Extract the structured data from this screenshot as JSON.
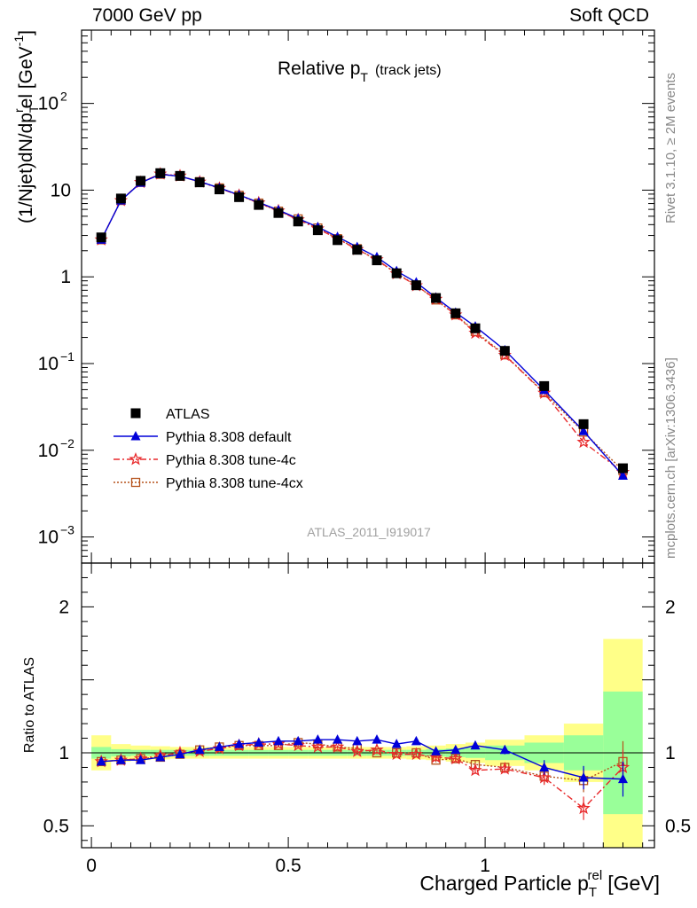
{
  "header": {
    "left": "7000 GeV pp",
    "right": "Soft QCD"
  },
  "side_labels": {
    "rivet": "Rivet 3.1.10, ≥ 2M events",
    "mcplots": "mcplots.cern.ch [arXiv:1306.3436]"
  },
  "chart_data": {
    "type": "line",
    "title_main": "Relative p",
    "title_sub": "T",
    "title_suffix": "(track jets)",
    "watermark": "ATLAS_2011_I919017",
    "xlabel": "Charged Particle p",
    "xlabel_sub": "T",
    "xlabel_sup": "rel",
    "xlabel_unit": "[GeV]",
    "ylabel": "(1/Njet)dN/dp",
    "ylabel_unit": "el [GeV",
    "ylabel_unit_sup": "-1",
    "ylabel_close": "]",
    "ratio_ylabel": "Ratio to ATLAS",
    "xlim": [
      -0.025,
      1.43
    ],
    "ylim_main": [
      0.0005,
      700
    ],
    "ylim_ratio": [
      0.35,
      2.3
    ],
    "yscale_main": "log",
    "x_ticks": [
      {
        "v": 0,
        "label": "0"
      },
      {
        "v": 0.5,
        "label": "0.5"
      },
      {
        "v": 1,
        "label": "1"
      }
    ],
    "main_y_ticks": [
      {
        "v": 0.001,
        "base": "10",
        "exp": "−3"
      },
      {
        "v": 0.01,
        "base": "10",
        "exp": "−2"
      },
      {
        "v": 0.1,
        "base": "10",
        "exp": "−1"
      },
      {
        "v": 1,
        "base": "1",
        "exp": ""
      },
      {
        "v": 10,
        "base": "10",
        "exp": ""
      },
      {
        "v": 100,
        "base": "10",
        "exp": "2"
      }
    ],
    "ratio_y_ticks": [
      {
        "v": 0.5,
        "label": "0.5"
      },
      {
        "v": 1,
        "label": "1"
      },
      {
        "v": 2,
        "label": "2"
      }
    ],
    "x": [
      0.025,
      0.075,
      0.125,
      0.175,
      0.225,
      0.275,
      0.325,
      0.375,
      0.425,
      0.475,
      0.525,
      0.575,
      0.625,
      0.675,
      0.725,
      0.775,
      0.825,
      0.875,
      0.925,
      0.975,
      1.05,
      1.15,
      1.25,
      1.35
    ],
    "bin_edges": [
      0,
      0.05,
      0.1,
      0.15,
      0.2,
      0.25,
      0.3,
      0.35,
      0.4,
      0.45,
      0.5,
      0.55,
      0.6,
      0.65,
      0.7,
      0.75,
      0.8,
      0.85,
      0.9,
      0.95,
      1.0,
      1.1,
      1.2,
      1.3,
      1.4
    ],
    "data": {
      "name": "ATLAS",
      "values": [
        2.85,
        8.0,
        12.8,
        15.7,
        14.6,
        12.3,
        10.2,
        8.3,
        6.75,
        5.45,
        4.35,
        3.45,
        2.65,
        2.05,
        1.55,
        1.1,
        0.8,
        0.57,
        0.38,
        0.255,
        0.14,
        0.055,
        0.02,
        0.0062
      ],
      "band_stat": [
        0.04,
        0.025,
        0.02,
        0.02,
        0.02,
        0.02,
        0.02,
        0.02,
        0.02,
        0.02,
        0.02,
        0.02,
        0.02,
        0.02,
        0.02,
        0.02,
        0.02,
        0.025,
        0.03,
        0.035,
        0.05,
        0.07,
        0.12,
        0.42
      ],
      "band_tot": [
        0.12,
        0.06,
        0.05,
        0.045,
        0.04,
        0.04,
        0.04,
        0.04,
        0.04,
        0.04,
        0.04,
        0.04,
        0.04,
        0.04,
        0.04,
        0.04,
        0.045,
        0.05,
        0.06,
        0.07,
        0.09,
        0.12,
        0.2,
        0.78
      ]
    },
    "series": [
      {
        "name": "Pythia 8.308 default",
        "color": "#0000d9",
        "marker": "triangle",
        "dash": "",
        "ratio": [
          0.94,
          0.95,
          0.95,
          0.97,
          0.99,
          1.02,
          1.04,
          1.06,
          1.07,
          1.08,
          1.08,
          1.09,
          1.09,
          1.08,
          1.09,
          1.06,
          1.08,
          1.01,
          1.02,
          1.05,
          1.02,
          0.9,
          0.83,
          0.82
        ],
        "ratio_err": [
          0.01,
          0.01,
          0.01,
          0.01,
          0.01,
          0.01,
          0.01,
          0.01,
          0.01,
          0.01,
          0.01,
          0.01,
          0.01,
          0.01,
          0.01,
          0.01,
          0.01,
          0.015,
          0.02,
          0.025,
          0.03,
          0.05,
          0.08,
          0.12
        ]
      },
      {
        "name": "Pythia 8.308 tune-4c",
        "color": "#e8292b",
        "marker": "star",
        "dash": "7,3,2,3",
        "ratio": [
          0.94,
          0.95,
          0.96,
          0.98,
          1.0,
          1.01,
          1.03,
          1.05,
          1.06,
          1.06,
          1.05,
          1.04,
          1.04,
          1.01,
          1.02,
          0.99,
          0.99,
          0.97,
          0.96,
          0.88,
          0.89,
          0.83,
          0.62,
          0.9
        ],
        "ratio_err": [
          0.01,
          0.01,
          0.01,
          0.01,
          0.01,
          0.01,
          0.01,
          0.01,
          0.01,
          0.01,
          0.01,
          0.01,
          0.01,
          0.01,
          0.01,
          0.01,
          0.015,
          0.015,
          0.02,
          0.025,
          0.03,
          0.05,
          0.08,
          0.12
        ]
      },
      {
        "name": "Pythia 8.308 tune-4cx",
        "color": "#b5521b",
        "marker": "square",
        "dash": "2,2",
        "ratio": [
          0.94,
          0.95,
          0.96,
          0.97,
          0.99,
          1.02,
          1.04,
          1.05,
          1.05,
          1.05,
          1.07,
          1.06,
          1.04,
          1.03,
          1.0,
          1.0,
          1.0,
          0.95,
          0.96,
          0.92,
          0.9,
          0.84,
          0.81,
          0.94
        ],
        "ratio_err": [
          0.01,
          0.01,
          0.01,
          0.01,
          0.01,
          0.01,
          0.01,
          0.01,
          0.01,
          0.01,
          0.01,
          0.01,
          0.01,
          0.01,
          0.01,
          0.01,
          0.015,
          0.015,
          0.02,
          0.025,
          0.03,
          0.05,
          0.08,
          0.14
        ]
      }
    ],
    "colors": {
      "band_inner": "#99ff99",
      "band_outer": "#ffff88",
      "watermark": "#a0a0a0"
    }
  }
}
